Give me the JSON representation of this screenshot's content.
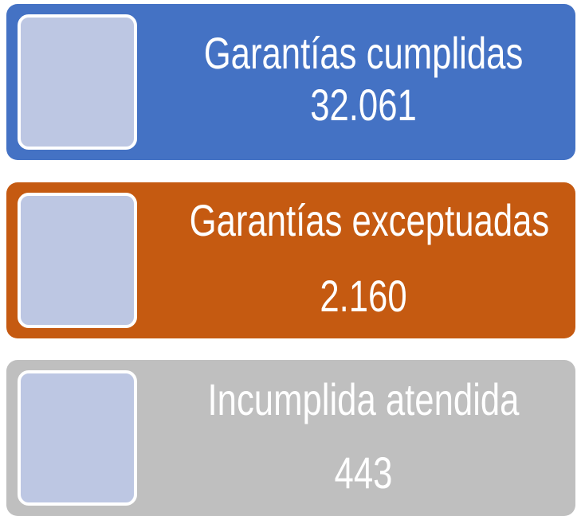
{
  "cards": [
    {
      "label": "Garantías cumplidas",
      "value": "32.061",
      "color": "#4472c4"
    },
    {
      "label": "Garantías exceptuadas",
      "value": "2.160",
      "color": "#c55a11"
    },
    {
      "label": "Incumplida atendida",
      "value": "443",
      "color": "#bfbfbf"
    }
  ]
}
